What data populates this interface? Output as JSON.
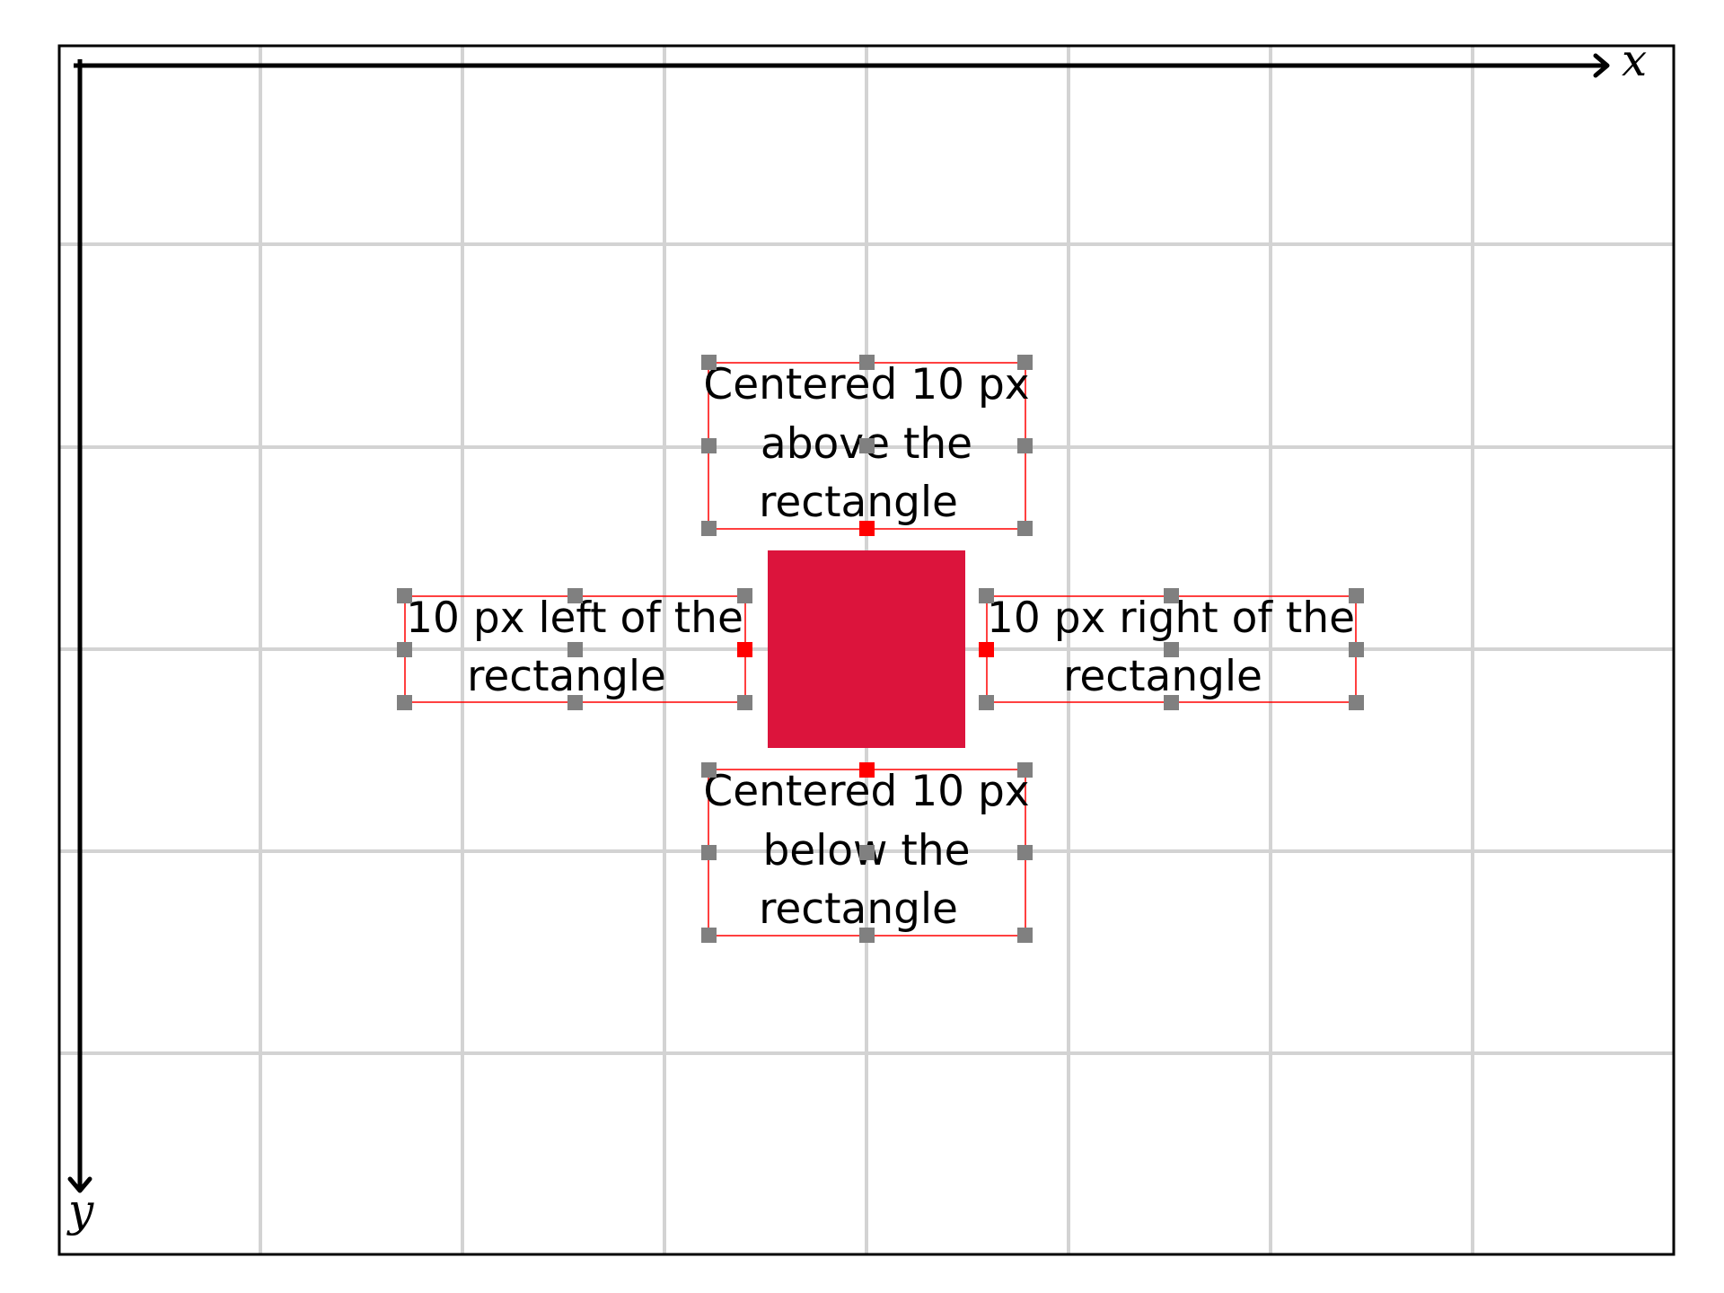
{
  "axes": {
    "x_label": "x",
    "y_label": "y"
  },
  "colors": {
    "rect": "#dc143c",
    "grid": "#d3d3d3",
    "box_outline": "#ff0000",
    "handle": "#808080",
    "anchor": "#ff0000"
  },
  "labels": {
    "above": [
      "Centered 10 px",
      "above the",
      "rectangle"
    ],
    "below": [
      "Centered 10 px",
      "below the",
      "rectangle"
    ],
    "left": [
      "10 px left of the",
      "rectangle"
    ],
    "right": [
      "10 px right of the",
      "rectangle"
    ]
  }
}
